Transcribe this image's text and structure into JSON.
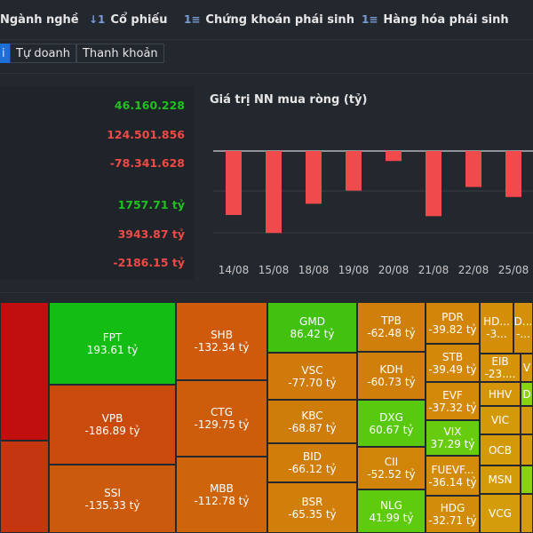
{
  "nav": {
    "items": [
      {
        "label": "Ngành nghề",
        "icon": ""
      },
      {
        "label": "Cổ phiếu",
        "icon": "↓1"
      },
      {
        "label": "Chứng khoán phái sinh",
        "icon": "1≡"
      },
      {
        "label": "Hàng hóa phái sinh",
        "icon": "1≡"
      }
    ]
  },
  "subtabs": [
    "i",
    "Tự doanh",
    "Thanh khoản"
  ],
  "stats": [
    "46.160.228",
    "124.501.856",
    "-78.341.628",
    "1757.71 tỷ",
    "3943.87 tỷ",
    "-2186.15 tỷ"
  ],
  "chart_title": "Giá trị NN mua ròng (tỷ)",
  "chart_data": {
    "type": "bar",
    "categories": [
      "14/08",
      "15/08",
      "18/08",
      "19/08",
      "20/08",
      "21/08",
      "22/08",
      "25/08"
    ],
    "values": [
      -1600,
      -2050,
      -1320,
      -990,
      -250,
      -1630,
      -900,
      -1150
    ],
    "colors": {
      "negative": "#f04a4c",
      "zero_line": "#ffffff",
      "grid": "#3a3f47"
    }
  },
  "treemap": [
    {
      "symbol": "",
      "value": ""
    },
    {
      "symbol": "",
      "value": ""
    },
    {
      "symbol": "FPT",
      "value": "193.61 tỷ"
    },
    {
      "symbol": "VPB",
      "value": "-186.89 tỷ"
    },
    {
      "symbol": "SSI",
      "value": "-135.33 tỷ"
    },
    {
      "symbol": "SHB",
      "value": "-132.34 tỷ"
    },
    {
      "symbol": "CTG",
      "value": "-129.75 tỷ"
    },
    {
      "symbol": "MBB",
      "value": "-112.78 tỷ"
    },
    {
      "symbol": "GMD",
      "value": "86.42 tỷ"
    },
    {
      "symbol": "VSC",
      "value": "-77.70 tỷ"
    },
    {
      "symbol": "KBC",
      "value": "-68.87 tỷ"
    },
    {
      "symbol": "BID",
      "value": "-66.12 tỷ"
    },
    {
      "symbol": "BSR",
      "value": "-65.35 tỷ"
    },
    {
      "symbol": "TPB",
      "value": "-62.48 tỷ"
    },
    {
      "symbol": "KDH",
      "value": "-60.73 tỷ"
    },
    {
      "symbol": "DXG",
      "value": "60.67 tỷ"
    },
    {
      "symbol": "CII",
      "value": "-52.52 tỷ"
    },
    {
      "symbol": "NLG",
      "value": "41.99 tỷ"
    },
    {
      "symbol": "PDR",
      "value": "-39.82 tỷ"
    },
    {
      "symbol": "STB",
      "value": "-39.49 tỷ"
    },
    {
      "symbol": "EVF",
      "value": "-37.32 tỷ"
    },
    {
      "symbol": "VIX",
      "value": "37.29 tỷ"
    },
    {
      "symbol": "FUEVF...",
      "value": "-36.14 tỷ"
    },
    {
      "symbol": "HDG",
      "value": "-32.71 tỷ"
    },
    {
      "symbol": "HD...",
      "value": "-3..."
    },
    {
      "symbol": "D...",
      "value": "-..."
    },
    {
      "symbol": "EIB",
      "value": "-23...."
    },
    {
      "symbol": "V",
      "value": ""
    },
    {
      "symbol": "HHV",
      "value": ""
    },
    {
      "symbol": "D",
      "value": ""
    },
    {
      "symbol": "VIC",
      "value": ""
    },
    {
      "symbol": "",
      "value": ""
    },
    {
      "symbol": "OCB",
      "value": ""
    },
    {
      "symbol": "",
      "value": ""
    },
    {
      "symbol": "MSN",
      "value": ""
    },
    {
      "symbol": "",
      "value": ""
    },
    {
      "symbol": "VCG",
      "value": ""
    },
    {
      "symbol": "",
      "value": ""
    }
  ]
}
